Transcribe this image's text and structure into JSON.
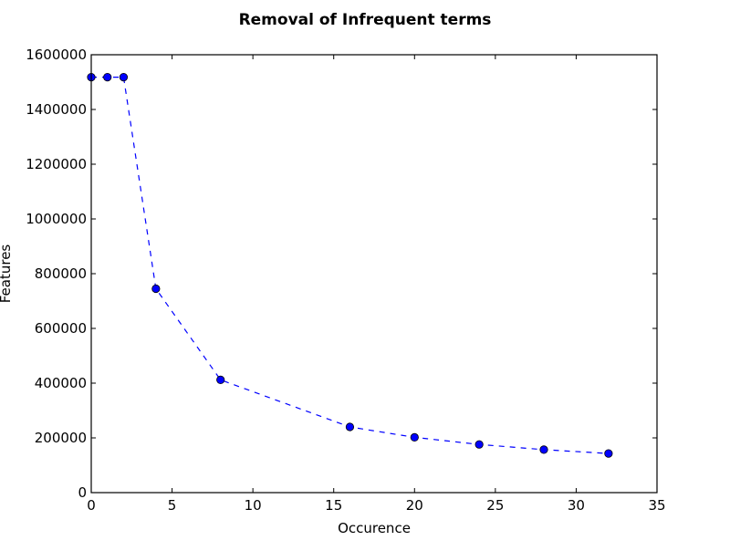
{
  "chart_data": {
    "type": "line",
    "title": "Removal of Infrequent terms",
    "xlabel": "Occurence",
    "ylabel": "Features",
    "xlim": [
      0,
      35
    ],
    "ylim": [
      0,
      1600000
    ],
    "xticks": [
      0,
      5,
      10,
      15,
      20,
      25,
      30,
      35
    ],
    "yticks": [
      0,
      200000,
      400000,
      600000,
      800000,
      1000000,
      1200000,
      1400000,
      1600000
    ],
    "xtick_labels": [
      "0",
      "5",
      "10",
      "15",
      "20",
      "25",
      "30",
      "35"
    ],
    "ytick_labels": [
      "0",
      "200000",
      "400000",
      "600000",
      "800000",
      "1000000",
      "1200000",
      "1400000",
      "1600000"
    ],
    "grid": false,
    "series": [
      {
        "color": "#0000ff",
        "line_style": "dashed",
        "marker": "circle",
        "x": [
          0,
          1,
          2,
          4,
          8,
          16,
          20,
          24,
          28,
          32
        ],
        "y": [
          1518000,
          1518000,
          1518000,
          745000,
          412000,
          240000,
          202000,
          176000,
          157000,
          143000
        ]
      }
    ]
  }
}
